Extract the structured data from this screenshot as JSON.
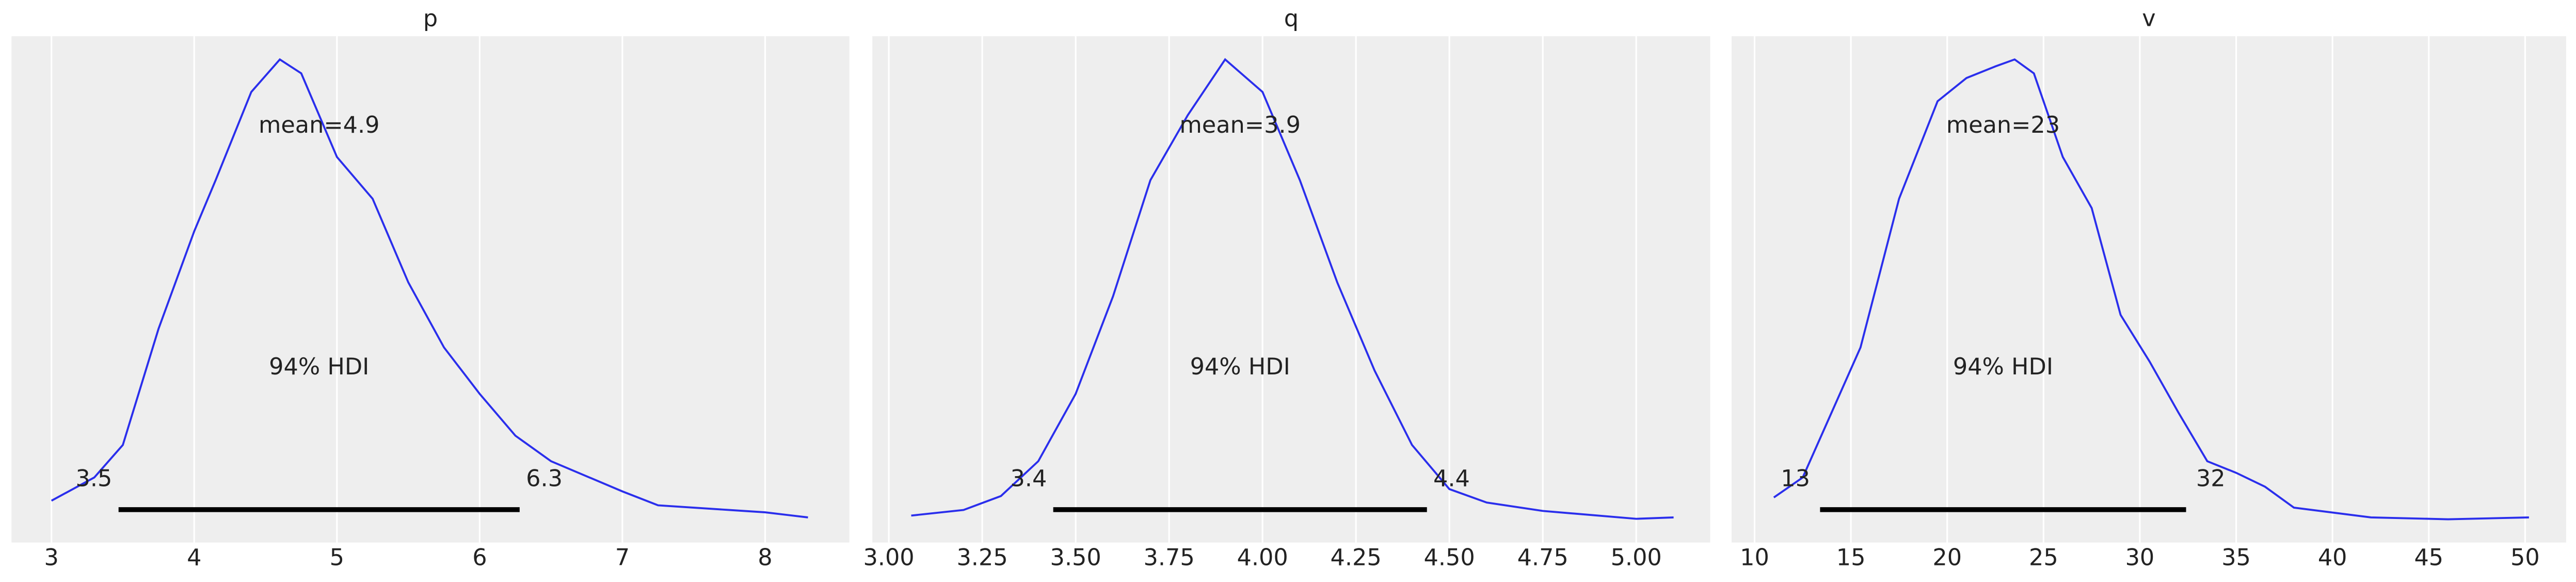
{
  "chart_data": [
    {
      "type": "line",
      "title": "p",
      "color": "#2a2eec",
      "grid": true,
      "x": [
        3.0,
        3.3,
        3.5,
        3.75,
        4.0,
        4.15,
        4.4,
        4.6,
        4.75,
        5.0,
        5.25,
        5.5,
        5.75,
        6.0,
        6.25,
        6.5,
        7.0,
        7.25,
        7.75,
        8.0,
        8.3
      ],
      "values": [
        0.05,
        0.1,
        0.17,
        0.42,
        0.63,
        0.74,
        0.93,
        1.0,
        0.97,
        0.79,
        0.7,
        0.52,
        0.38,
        0.28,
        0.19,
        0.135,
        0.07,
        0.04,
        0.03,
        0.025,
        0.014
      ],
      "xlim": [
        2.72,
        8.59
      ],
      "xticks": [
        3,
        4,
        5,
        6,
        7,
        8
      ],
      "ylim": [
        -0.04,
        1.05
      ],
      "mean_label": "mean=4.9",
      "hdi_label": "94% HDI",
      "hdi": {
        "values": [
          3.47,
          6.28
        ],
        "value_labels": [
          "3.5",
          "6.3"
        ]
      }
    },
    {
      "type": "line",
      "title": "q",
      "color": "#2a2eec",
      "grid": true,
      "x": [
        3.06,
        3.2,
        3.3,
        3.4,
        3.5,
        3.6,
        3.7,
        3.8,
        3.9,
        4.0,
        4.1,
        4.2,
        4.3,
        4.4,
        4.5,
        4.6,
        4.75,
        5.0,
        5.1
      ],
      "values": [
        0.018,
        0.03,
        0.06,
        0.135,
        0.28,
        0.49,
        0.74,
        0.88,
        1.0,
        0.93,
        0.74,
        0.52,
        0.33,
        0.17,
        0.075,
        0.046,
        0.028,
        0.011,
        0.014
      ],
      "xlim": [
        2.956,
        5.198
      ],
      "xticks": [
        {
          "value": 3,
          "label": "3.00"
        },
        {
          "value": 3.25,
          "label": "3.25"
        },
        {
          "value": 3.5,
          "label": "3.50"
        },
        {
          "value": 3.75,
          "label": "3.75"
        },
        {
          "value": 4,
          "label": "4.00"
        },
        {
          "value": 4.25,
          "label": "4.25"
        },
        {
          "value": 4.5,
          "label": "4.50"
        },
        {
          "value": 4.75,
          "label": "4.75"
        },
        {
          "value": 5,
          "label": "5.00"
        }
      ],
      "ylim": [
        -0.04,
        1.05
      ],
      "mean_label": "mean=3.9",
      "hdi_label": "94% HDI",
      "hdi": {
        "values": [
          3.44,
          4.44
        ],
        "value_labels": [
          "3.4",
          "4.4"
        ]
      }
    },
    {
      "type": "line",
      "title": "v",
      "color": "#2a2eec",
      "grid": true,
      "x": [
        11,
        12.5,
        14,
        15.5,
        17.5,
        19.5,
        21,
        22.5,
        23.5,
        24.5,
        26,
        27.5,
        29,
        30.5,
        32,
        33.5,
        35,
        36.5,
        38,
        42,
        46,
        50.2
      ],
      "values": [
        0.057,
        0.1,
        0.24,
        0.38,
        0.7,
        0.91,
        0.96,
        0.985,
        1.0,
        0.97,
        0.79,
        0.68,
        0.45,
        0.35,
        0.24,
        0.135,
        0.11,
        0.08,
        0.035,
        0.014,
        0.01,
        0.014
      ],
      "xlim": [
        8.806,
        52.13
      ],
      "xticks": [
        10,
        15,
        20,
        25,
        30,
        35,
        40,
        45,
        50
      ],
      "ylim": [
        -0.04,
        1.05
      ],
      "mean_label": "mean=23",
      "hdi_label": "94% HDI",
      "hdi": {
        "values": [
          13.4,
          32.4
        ],
        "value_labels": [
          "13",
          "32"
        ]
      }
    }
  ]
}
